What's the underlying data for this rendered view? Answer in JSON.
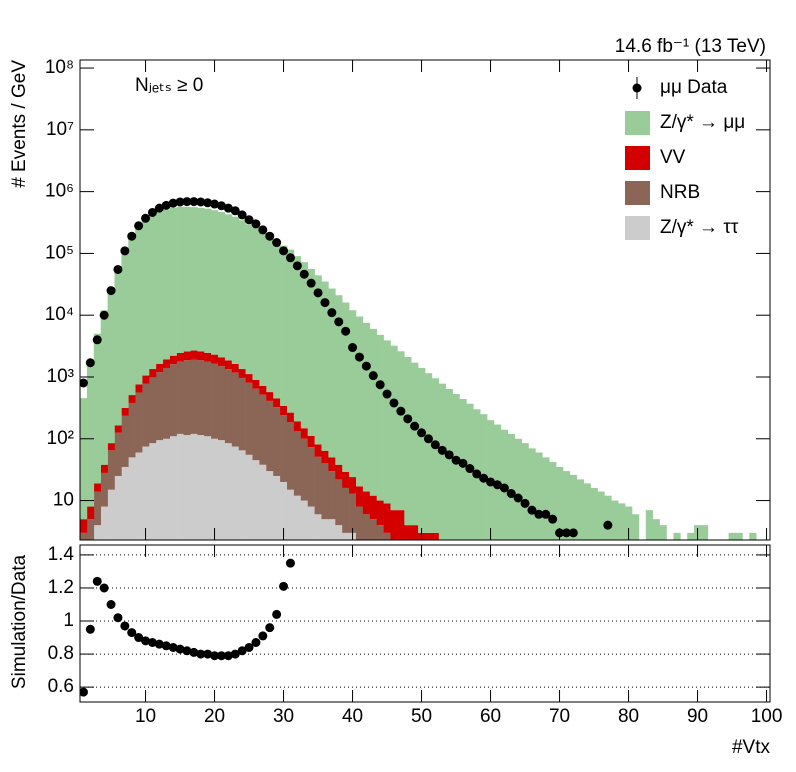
{
  "chart_data": [
    {
      "type": "histogram",
      "annotations": [
        "14.6 fb⁻¹ (13 TeV)",
        "Nⱼₑₜₛ ≥ 0"
      ],
      "y_label": "# Events / GeV",
      "log_y": true,
      "stacked": true,
      "legend": "top-right",
      "xlim": [
        0.5,
        100.5
      ],
      "ylim": [
        2.3,
        135000000
      ],
      "yticks": [
        10,
        {
          "value": 100,
          "label": "10²"
        },
        {
          "value": 1000,
          "label": "10³"
        },
        {
          "value": 10000,
          "label": "10⁴"
        },
        {
          "value": 100000,
          "label": "10⁵"
        },
        {
          "value": 1000000,
          "label": "10⁶"
        },
        {
          "value": 10000000,
          "label": "10⁷"
        },
        {
          "value": 100000000,
          "label": "10⁸"
        }
      ],
      "x": [
        1,
        2,
        3,
        4,
        5,
        6,
        7,
        8,
        9,
        10,
        11,
        12,
        13,
        14,
        15,
        16,
        17,
        18,
        19,
        20,
        21,
        22,
        23,
        24,
        25,
        26,
        27,
        28,
        29,
        30,
        31,
        32,
        33,
        34,
        35,
        36,
        37,
        38,
        39,
        40,
        41,
        42,
        43,
        44,
        45,
        46,
        47,
        48,
        49,
        50,
        51,
        52,
        53,
        54,
        55,
        56,
        57,
        58,
        59,
        60,
        61,
        62,
        63,
        64,
        65,
        66,
        67,
        68,
        69,
        70,
        71,
        72,
        73,
        74,
        75,
        76,
        77,
        78,
        79,
        80,
        81,
        82,
        83,
        84,
        85,
        86,
        87,
        88,
        89,
        90,
        91,
        92,
        93,
        94,
        95,
        96,
        97,
        98,
        99,
        100
      ],
      "series": [
        {
          "name": "μμ Data",
          "mark": "points",
          "color": "#000000",
          "values": [
            800,
            1700,
            4000,
            10000,
            25000,
            55000,
            110000,
            190000,
            280000,
            370000,
            460000,
            540000,
            600000,
            650000,
            680000,
            690000,
            690000,
            680000,
            660000,
            630000,
            590000,
            540000,
            490000,
            420000,
            350000,
            300000,
            240000,
            190000,
            150000,
            110000,
            85000,
            63000,
            46000,
            33000,
            23000,
            16000,
            11000,
            7800,
            5500,
            3000,
            2100,
            1500,
            1050,
            750,
            530,
            380,
            280,
            210,
            160,
            125,
            100,
            80,
            65,
            55,
            45,
            40,
            33,
            27,
            23,
            20,
            18,
            16,
            13,
            11,
            9,
            7,
            6,
            6,
            5,
            3,
            3,
            3,
            null,
            null,
            null,
            null,
            4,
            null,
            null,
            null,
            null,
            null,
            null,
            null,
            null,
            null,
            null,
            null,
            null,
            null,
            null,
            null,
            null,
            null,
            null,
            null,
            null,
            null,
            null,
            null
          ]
        },
        {
          "name": "Z/γ* → μμ",
          "mark": "bars",
          "color": "#99cc99",
          "values": [
            450,
            1600,
            5000,
            12000,
            27000,
            56000,
            107000,
            177000,
            252000,
            326000,
            400000,
            464000,
            510000,
            546000,
            564000,
            566000,
            559000,
            544000,
            528000,
            498000,
            466000,
            427000,
            392000,
            344000,
            294000,
            261000,
            218000,
            182000,
            156000,
            133000,
            115000,
            90000,
            72000,
            56000,
            44000,
            35000,
            27000,
            21000,
            16000,
            12000,
            9500,
            7500,
            6000,
            4800,
            3900,
            3200,
            2600,
            2100,
            1700,
            1400,
            1150,
            950,
            780,
            640,
            530,
            440,
            370,
            300,
            250,
            200,
            170,
            140,
            120,
            100,
            85,
            70,
            60,
            50,
            42,
            35,
            30,
            26,
            22,
            19,
            16,
            14,
            12,
            10,
            9,
            8,
            6,
            null,
            7,
            5,
            4,
            null,
            3,
            null,
            3,
            4,
            4,
            null,
            null,
            null,
            3,
            3,
            null,
            3,
            null,
            null
          ]
        },
        {
          "name": "VV",
          "mark": "bars",
          "color": "#d40000",
          "values": [
            2,
            3,
            5,
            10,
            20,
            40,
            80,
            130,
            200,
            280,
            360,
            440,
            520,
            600,
            680,
            730,
            760,
            740,
            700,
            650,
            590,
            520,
            450,
            380,
            310,
            250,
            200,
            160,
            125,
            100,
            80,
            60,
            48,
            38,
            30,
            24,
            20,
            16,
            13,
            11,
            9,
            8,
            7,
            6,
            6,
            5,
            5,
            4,
            4,
            3,
            3,
            3,
            null,
            null,
            null,
            null,
            null,
            null,
            null,
            null,
            null,
            null,
            null,
            null,
            null,
            null,
            null,
            null,
            null,
            null,
            null,
            null,
            null,
            null,
            null,
            null,
            null,
            null,
            null,
            null,
            null,
            null,
            null,
            null,
            null,
            null,
            null,
            null,
            null,
            null,
            null,
            null,
            null,
            null,
            null,
            null,
            null,
            null,
            null,
            null
          ]
        },
        {
          "name": "NRB",
          "mark": "bars",
          "color": "#8b6556",
          "values": [
            3,
            5,
            10,
            20,
            50,
            100,
            200,
            330,
            500,
            700,
            900,
            1100,
            1300,
            1500,
            1650,
            1750,
            1800,
            1750,
            1650,
            1550,
            1400,
            1250,
            1100,
            900,
            750,
            600,
            480,
            380,
            300,
            220,
            170,
            120,
            90,
            65,
            45,
            35,
            25,
            18,
            13,
            10,
            8,
            6,
            5,
            4,
            3,
            2,
            2,
            null,
            null,
            null,
            null,
            null,
            null,
            null,
            null,
            null,
            null,
            null,
            null,
            null,
            null,
            null,
            null,
            null,
            null,
            null,
            null,
            null,
            null,
            null,
            null,
            null,
            null,
            null,
            null,
            null,
            null,
            null,
            null,
            null,
            null,
            null,
            null,
            null,
            null,
            null,
            null,
            null,
            null,
            null,
            null,
            null,
            null,
            null,
            null,
            null,
            null,
            null,
            null,
            null
          ]
        },
        {
          "name": "Z/γ* → ττ",
          "mark": "bars",
          "color": "#cccccc",
          "values": [
            null,
            null,
            4,
            8,
            15,
            25,
            35,
            50,
            60,
            75,
            85,
            95,
            100,
            110,
            120,
            115,
            120,
            115,
            110,
            100,
            95,
            85,
            75,
            65,
            55,
            45,
            38,
            30,
            25,
            20,
            15,
            12,
            10,
            8,
            6,
            5,
            5,
            4,
            3,
            3,
            null,
            null,
            null,
            null,
            null,
            null,
            null,
            null,
            null,
            null,
            null,
            null,
            null,
            null,
            null,
            null,
            null,
            null,
            null,
            null,
            null,
            null,
            null,
            null,
            null,
            null,
            null,
            null,
            null,
            null,
            null,
            null,
            null,
            null,
            null,
            null,
            null,
            null,
            null,
            null,
            null,
            null,
            null,
            null,
            null,
            null,
            null,
            null,
            null,
            null,
            null,
            null,
            null,
            null,
            null,
            null,
            null,
            null,
            null,
            null
          ]
        }
      ]
    },
    {
      "type": "scatter",
      "x_label": "#Vtx",
      "y_label": "Simulation/Data",
      "grid": true,
      "color": "#000000",
      "xlim": [
        0.5,
        100.5
      ],
      "ylim": [
        0.51,
        1.46
      ],
      "xticks": [
        10,
        20,
        30,
        40,
        50,
        60,
        70,
        80,
        90,
        100
      ],
      "yticks": [
        0.6,
        0.8,
        1,
        1.2,
        1.4
      ],
      "x": [
        1,
        2,
        3,
        4,
        5,
        6,
        7,
        8,
        9,
        10,
        11,
        12,
        13,
        14,
        15,
        16,
        17,
        18,
        19,
        20,
        21,
        22,
        23,
        24,
        25,
        26,
        27,
        28,
        29,
        30,
        31
      ],
      "values": [
        0.57,
        0.95,
        1.24,
        1.2,
        1.1,
        1.02,
        0.97,
        0.93,
        0.9,
        0.88,
        0.87,
        0.86,
        0.85,
        0.84,
        0.83,
        0.82,
        0.81,
        0.8,
        0.8,
        0.79,
        0.79,
        0.79,
        0.8,
        0.82,
        0.84,
        0.87,
        0.91,
        0.96,
        1.04,
        1.21,
        1.35
      ]
    }
  ]
}
